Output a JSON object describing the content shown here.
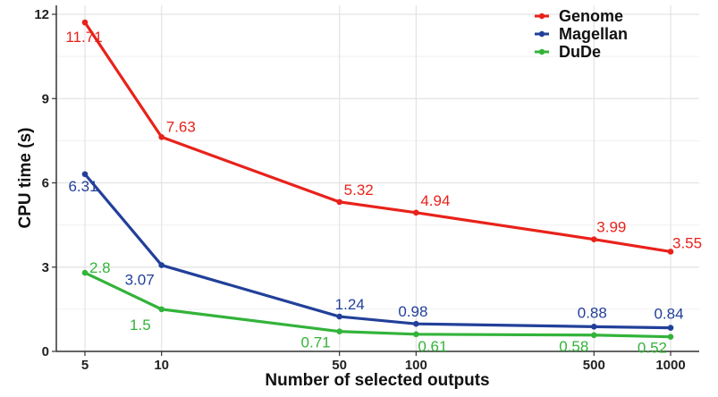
{
  "chart_data": {
    "type": "line",
    "xlabel": "Number of selected outputs",
    "ylabel": "CPU time (s)",
    "x": [
      5,
      10,
      50,
      100,
      500,
      1000
    ],
    "x_tick_labels": [
      "5",
      "10",
      "50",
      "100",
      "500",
      "1000"
    ],
    "x_scale": "log",
    "ylim": [
      0,
      12
    ],
    "y_ticks": [
      0,
      3,
      6,
      9,
      12
    ],
    "y_tick_labels": [
      "0",
      "3",
      "6",
      "9",
      "12"
    ],
    "grid": true,
    "legend_position": "top-right",
    "series": [
      {
        "name": "Genome",
        "color": "#e8221b",
        "values": [
          11.71,
          7.63,
          5.32,
          4.94,
          3.99,
          3.55
        ],
        "labels": [
          "11.71",
          "7.63",
          "5.32",
          "4.94",
          "3.99",
          "3.55"
        ]
      },
      {
        "name": "Magellan",
        "color": "#22409a",
        "values": [
          6.31,
          3.07,
          1.24,
          0.98,
          0.88,
          0.84
        ],
        "labels": [
          "6.31",
          "3.07",
          "1.24",
          "0.98",
          "0.88",
          "0.84"
        ]
      },
      {
        "name": "DuDe",
        "color": "#33b33a",
        "values": [
          2.8,
          1.5,
          0.71,
          0.61,
          0.58,
          0.52
        ],
        "labels": [
          "2.8",
          "1.5",
          "0.71",
          "0.61",
          "0.58",
          "0.52"
        ]
      }
    ]
  }
}
